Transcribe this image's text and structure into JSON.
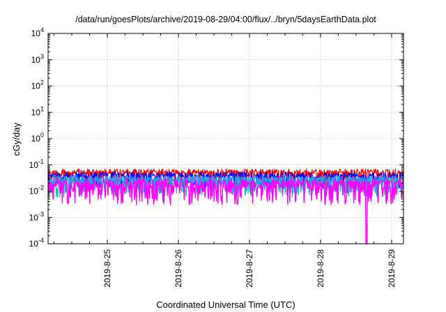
{
  "chart_data": {
    "type": "line",
    "title": "/data/run/goesPlots/archive/2019-08-29/04:00/flux/../bryn/5daysEarthData.plot",
    "xlabel": "Coordinated Universal Time (UTC)",
    "ylabel": "cGy/day",
    "yscale": "log",
    "ylim": [
      0.0001,
      10000
    ],
    "yticks": [
      {
        "value": 0.0001,
        "base": "10",
        "exp": "-4"
      },
      {
        "value": 0.001,
        "base": "10",
        "exp": "-3"
      },
      {
        "value": 0.01,
        "base": "10",
        "exp": "-2"
      },
      {
        "value": 0.1,
        "base": "10",
        "exp": "-1"
      },
      {
        "value": 1,
        "base": "10",
        "exp": "0"
      },
      {
        "value": 10,
        "base": "10",
        "exp": "1"
      },
      {
        "value": 100,
        "base": "10",
        "exp": "2"
      },
      {
        "value": 1000,
        "base": "10",
        "exp": "3"
      },
      {
        "value": 10000,
        "base": "10",
        "exp": "4"
      }
    ],
    "xlim": [
      "2019-08-24T04:00",
      "2019-08-29T04:00"
    ],
    "xticks": [
      {
        "value": "2019-08-25T00:00",
        "label": "2019-8-25"
      },
      {
        "value": "2019-08-26T00:00",
        "label": "2019-8-26"
      },
      {
        "value": "2019-08-27T00:00",
        "label": "2019-8-27"
      },
      {
        "value": "2019-08-28T00:00",
        "label": "2019-8-28"
      },
      {
        "value": "2019-08-29T00:00",
        "label": "2019-8-29"
      }
    ],
    "grid": true,
    "series": [
      {
        "color": "#ff0000",
        "low": 0.02,
        "high": 0.07
      },
      {
        "color": "#0000ff",
        "low": 0.012,
        "high": 0.055
      },
      {
        "color": "#00c0a0",
        "low": 0.006,
        "high": 0.035
      },
      {
        "color": "#3399ff",
        "low": 0.008,
        "high": 0.04
      },
      {
        "color": "#ff00ff",
        "low": 0.003,
        "high": 0.03,
        "dropout": {
          "time": "2019-08-28T15:30",
          "value": 0.0001
        }
      }
    ]
  }
}
